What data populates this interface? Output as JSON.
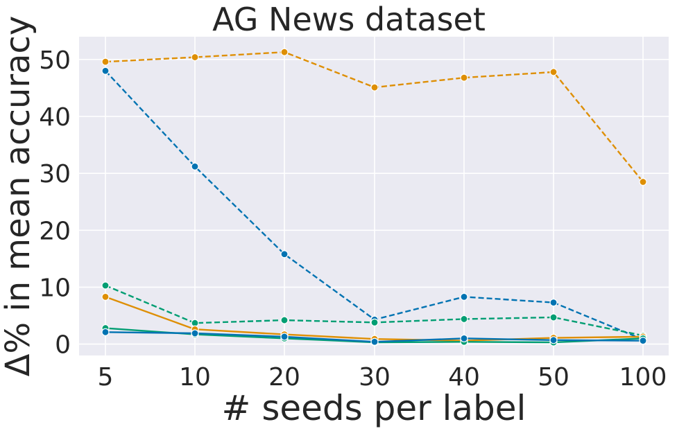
{
  "chart_data": {
    "type": "line",
    "title": "AG News dataset",
    "xlabel": "# seeds per label",
    "ylabel": "Δ% in mean accuracy",
    "categories": [
      "5",
      "10",
      "20",
      "30",
      "40",
      "50",
      "100"
    ],
    "ylim": [
      -2,
      54
    ],
    "yticks": [
      0,
      10,
      20,
      30,
      40,
      50
    ],
    "grid": true,
    "background": "#EAEAF2",
    "series": [
      {
        "color": "#DE8F05",
        "dashed": true,
        "values": [
          49.6,
          50.4,
          51.3,
          45.1,
          46.8,
          47.8,
          28.5
        ]
      },
      {
        "color": "#0173B2",
        "dashed": true,
        "values": [
          48.0,
          31.2,
          15.8,
          4.3,
          8.3,
          7.3,
          0.8
        ]
      },
      {
        "color": "#029E73",
        "dashed": true,
        "values": [
          10.3,
          3.7,
          4.2,
          3.8,
          4.4,
          4.7,
          1.5
        ]
      },
      {
        "color": "#DE8F05",
        "dashed": false,
        "values": [
          8.3,
          2.6,
          1.7,
          0.9,
          0.6,
          1.1,
          1.3
        ]
      },
      {
        "color": "#029E73",
        "dashed": false,
        "values": [
          2.8,
          1.7,
          1.0,
          0.3,
          0.4,
          0.3,
          1.0
        ]
      },
      {
        "color": "#0173B2",
        "dashed": false,
        "values": [
          2.1,
          1.9,
          1.3,
          0.4,
          1.0,
          0.7,
          0.6
        ]
      }
    ]
  }
}
